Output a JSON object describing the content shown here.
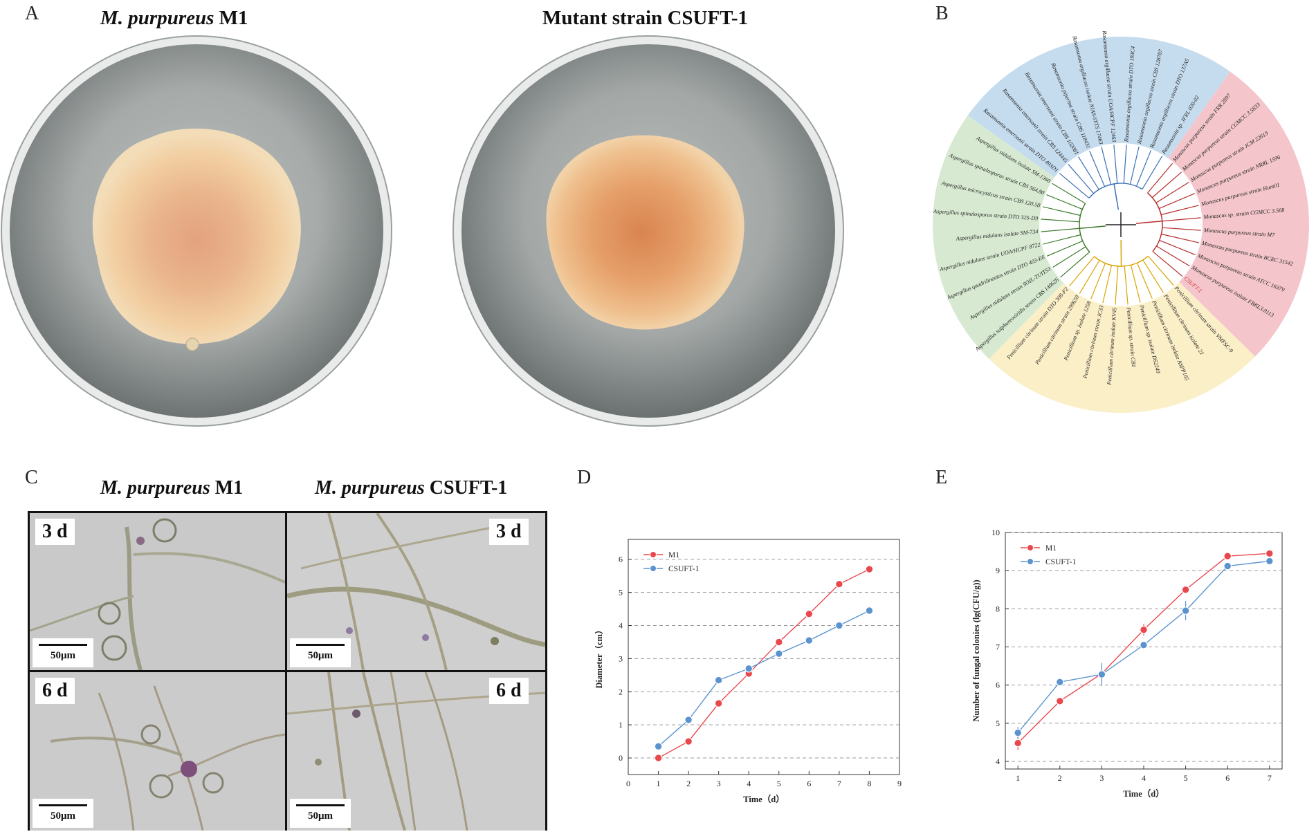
{
  "panels": {
    "A": {
      "letter": "A",
      "left_title_species": "M. purpureus",
      "left_title_strain": " M1",
      "right_title": "Mutant strain CSUFT-1"
    },
    "B": {
      "letter": "B",
      "clade_colors": {
        "blue": "#c5dcef",
        "red": "#f4c6cb",
        "green": "#d7ead1",
        "yellow": "#fbefc8"
      },
      "tree_line_colors": {
        "blue": "#3b6fb5",
        "red": "#b52c2c",
        "green": "#3c7a2a",
        "yellow": "#d9a400"
      },
      "leaves": [
        {
          "label": "Rasamsonia emersonii strain DTO 493D1",
          "clade": "blue"
        },
        {
          "label": "Rasamsonia emersonii strain CBS 124445",
          "clade": "blue"
        },
        {
          "label": "Rasamsonia emersonii strain CBS 102081",
          "clade": "blue"
        },
        {
          "label": "Rasamsonia piperina strain CBS 118431",
          "clade": "blue"
        },
        {
          "label": "Rasamsonia argillacea isolate NIAS-SYTS 17463",
          "clade": "blue"
        },
        {
          "label": "Rasamsonia argillacea strain UOA/HCPF 12463",
          "clade": "blue"
        },
        {
          "label": "Rasamsonia argillacea strain DTO 193C4",
          "clade": "blue"
        },
        {
          "label": "Rasamsonia argillacea strain CBS 128787",
          "clade": "blue"
        },
        {
          "label": "Rasamsonia argillacea strain DTO 137A5",
          "clade": "blue"
        },
        {
          "label": "Rasamsonia sp. JFRL 030-02",
          "clade": "blue"
        },
        {
          "label": "Monascus purpureus strain FRR 2897",
          "clade": "red"
        },
        {
          "label": "Monascus purpureus strain CGMCC 3.5833",
          "clade": "red"
        },
        {
          "label": "Monascus purpureus strain JCM 22619",
          "clade": "red"
        },
        {
          "label": "Monascus purpureus strain NRRL 1596",
          "clade": "red"
        },
        {
          "label": "Monascus purpureus strain Hunt01",
          "clade": "red"
        },
        {
          "label": "Monascus sp. strain CGMCC 3.568",
          "clade": "red"
        },
        {
          "label": "Monascus purpureus strain M7",
          "clade": "red"
        },
        {
          "label": "Monascus purpureus strain BCRC 31542",
          "clade": "red"
        },
        {
          "label": "Monascus purpureus strain ATCC 16379",
          "clade": "red"
        },
        {
          "label": "Monascus purpureus isolate FBKL3.0113",
          "clade": "red"
        },
        {
          "label": "CSUFT-1",
          "clade": "red",
          "highlight": true
        },
        {
          "label": "Penicillium citrinum strain VMFSC-9",
          "clade": "yellow"
        },
        {
          "label": "Penicillium citrinum isolate 21",
          "clade": "yellow"
        },
        {
          "label": "Penicillium citrinum isolate ASPP165",
          "clade": "yellow"
        },
        {
          "label": "Penicillium sp. isolate DS2249",
          "clade": "yellow"
        },
        {
          "label": "Penicillium sp. strain CB1",
          "clade": "yellow"
        },
        {
          "label": "Penicillium citrinum isolate KV45",
          "clade": "yellow"
        },
        {
          "label": "Penicillium citrinum strain JC33",
          "clade": "yellow"
        },
        {
          "label": "Penicillium sp. isolate 1258",
          "clade": "yellow"
        },
        {
          "label": "Penicillium citrinum strain 299650",
          "clade": "yellow"
        },
        {
          "label": "Penicillium citrinum strain DTO 308-F2",
          "clade": "yellow"
        },
        {
          "label": "Aspergillus sulphureoviridis strain CBS 140626",
          "clade": "green"
        },
        {
          "label": "Aspergillus nidulans strain SOIL-TUITS3",
          "clade": "green"
        },
        {
          "label": "Aspergillus quadrilineatus strain DTO 403-E6",
          "clade": "green"
        },
        {
          "label": "Aspergillus nidulans strain UOA/HCPF 8722",
          "clade": "green"
        },
        {
          "label": "Aspergillus nidulans isolate SM-734",
          "clade": "green"
        },
        {
          "label": "Aspergillus spinulosporus strain DTO 325-D9",
          "clade": "green"
        },
        {
          "label": "Aspergillus microcysticus strain CBS 120.58",
          "clade": "green"
        },
        {
          "label": "Aspergillus spinulosporus strain CBS 564.80",
          "clade": "green"
        },
        {
          "label": "Aspergillus nidulans isolate SM-1360",
          "clade": "green"
        }
      ]
    },
    "C": {
      "letter": "C",
      "left_title_species": "M. purpureus",
      "left_title_strain": " M1",
      "right_title_species": "M. purpureus",
      "right_title_strain": " CSUFT-1",
      "day_labels": [
        "3 d",
        "3 d",
        "6 d",
        "6 d"
      ],
      "scale_labels": [
        "50μm",
        "50μm",
        "50μm",
        "50μm"
      ]
    },
    "D": {
      "letter": "D"
    },
    "E": {
      "letter": "E"
    }
  },
  "chart_data": [
    {
      "type": "line",
      "panel": "D",
      "xlabel": "Time（d）",
      "ylabel": "Diameter（cm）",
      "xlim": [
        0,
        9
      ],
      "ylim": [
        -0.5,
        6.6
      ],
      "xticks": [
        0,
        1,
        2,
        3,
        4,
        5,
        6,
        7,
        8,
        9
      ],
      "yticks": [
        0,
        1,
        2,
        3,
        4,
        5,
        6
      ],
      "grid": "horizontal-dashed",
      "legend": "top-left",
      "series": [
        {
          "name": "M1",
          "color": "#e8474c",
          "x": [
            1,
            2,
            3,
            4,
            5,
            6,
            7,
            8
          ],
          "values": [
            0,
            0.5,
            1.65,
            2.55,
            3.5,
            4.35,
            5.25,
            5.7
          ],
          "err": [
            0,
            0,
            0,
            0.05,
            0.05,
            0,
            0,
            0.12
          ]
        },
        {
          "name": "CSUFT-1",
          "color": "#5b93cf",
          "x": [
            1,
            2,
            3,
            4,
            5,
            6,
            7,
            8
          ],
          "values": [
            0.35,
            1.15,
            2.35,
            2.7,
            3.15,
            3.55,
            4.0,
            4.45
          ],
          "err": [
            0,
            0,
            0,
            0,
            0,
            0,
            0.1,
            0
          ]
        }
      ]
    },
    {
      "type": "line",
      "panel": "E",
      "xlabel": "Time（d）",
      "ylabel": "Number of fungal colonies (lg(CFU/g))",
      "xlim": [
        0.7,
        7.3
      ],
      "ylim": [
        3.8,
        10
      ],
      "xticks": [
        1,
        2,
        3,
        4,
        5,
        6,
        7
      ],
      "yticks": [
        4,
        5,
        6,
        7,
        8,
        9,
        10
      ],
      "grid": "horizontal-dashed",
      "legend": "top-left",
      "series": [
        {
          "name": "M1",
          "color": "#e8474c",
          "x": [
            1,
            2,
            3,
            4,
            5,
            6,
            7
          ],
          "values": [
            4.48,
            5.58,
            6.3,
            7.45,
            8.5,
            9.38,
            9.45
          ],
          "err": [
            0.18,
            0,
            0.2,
            0.15,
            0.08,
            0.08,
            0
          ]
        },
        {
          "name": "CSUFT-1",
          "color": "#5b93cf",
          "x": [
            1,
            2,
            3,
            4,
            5,
            6,
            7
          ],
          "values": [
            4.75,
            6.08,
            6.28,
            7.05,
            7.95,
            9.12,
            9.25
          ],
          "err": [
            0.15,
            0,
            0.3,
            0.08,
            0.25,
            0.1,
            0
          ]
        }
      ]
    }
  ]
}
